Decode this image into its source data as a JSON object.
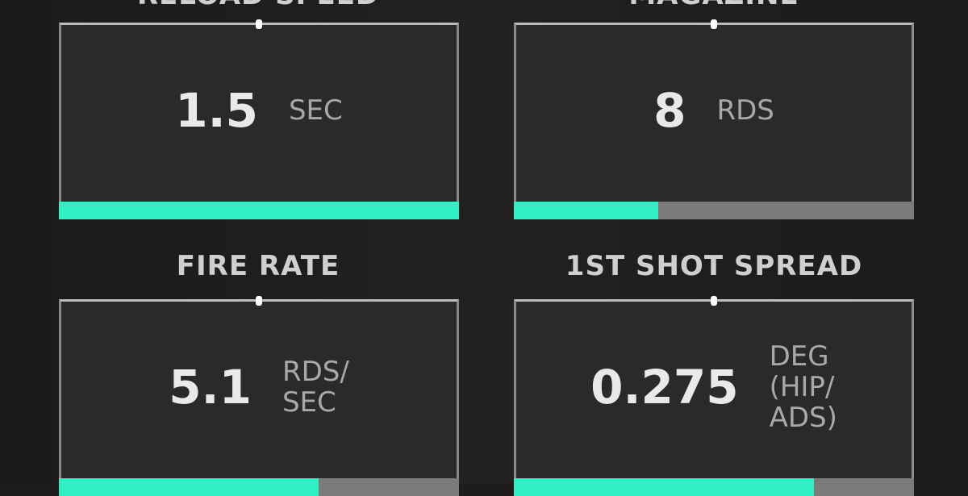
{
  "accent_color": "#2ef0c4",
  "stats": [
    {
      "title": "RELOAD SPEED",
      "value": "1.5",
      "unit": "SEC",
      "fill_percent": 100
    },
    {
      "title": "MAGAZINE",
      "value": "8",
      "unit": "RDS",
      "fill_percent": 36
    },
    {
      "title": "FIRE RATE",
      "value": "5.1",
      "unit": "RDS/\nSEC",
      "fill_percent": 65
    },
    {
      "title": "1ST SHOT SPREAD",
      "value": "0.275",
      "unit": "DEG\n(HIP/\nADS)",
      "fill_percent": 75
    }
  ]
}
